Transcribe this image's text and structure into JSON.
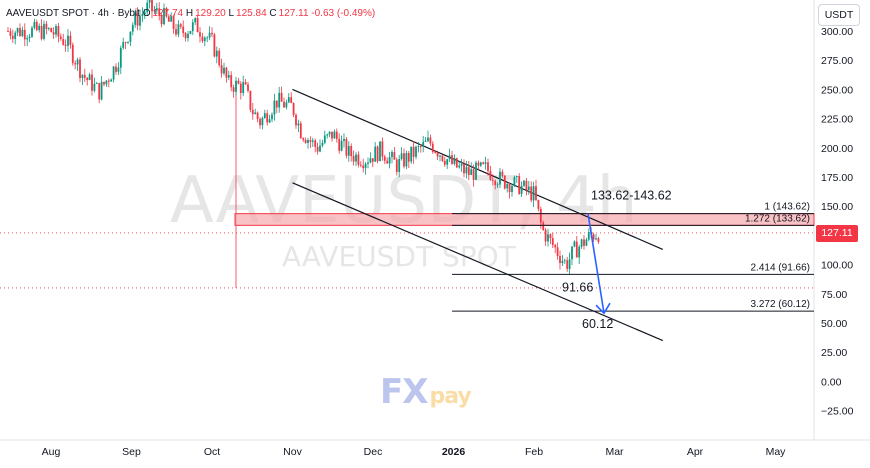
{
  "chart_data": {
    "type": "candlestick",
    "title": "AAVEUSDT SPOT · 4h · Bybit",
    "watermark": {
      "main": "AAVEUSDT, 4h",
      "sub": "AAVEUSDT SPOT"
    },
    "currency": "USDT",
    "ohlc": {
      "o_label": "O",
      "o": "127.74",
      "h_label": "H",
      "h": "129.20",
      "l_label": "L",
      "l": "125.84",
      "c_label": "C",
      "c": "127.11",
      "change": "-0.63 (-0.49%)"
    },
    "last_price": "127.11",
    "y_ticks": [
      300,
      275,
      250,
      225,
      200,
      175,
      150,
      125,
      100,
      75,
      50,
      25,
      0,
      -25
    ],
    "y_tick_labels": [
      "300.00",
      "275.00",
      "250.00",
      "225.00",
      "200.00",
      "175.00",
      "150.00",
      "125.00",
      "100.00",
      "75.00",
      "50.00",
      "25.00",
      "0.00",
      "−25.00"
    ],
    "x_ticks": [
      {
        "label": "Aug",
        "bold": false
      },
      {
        "label": "Sep",
        "bold": false
      },
      {
        "label": "Oct",
        "bold": false
      },
      {
        "label": "Nov",
        "bold": false
      },
      {
        "label": "Dec",
        "bold": false
      },
      {
        "label": "2026",
        "bold": true
      },
      {
        "label": "Feb",
        "bold": false
      },
      {
        "label": "Mar",
        "bold": false
      },
      {
        "label": "Apr",
        "bold": false
      },
      {
        "label": "May",
        "bold": false
      }
    ],
    "ylim": [
      -30,
      325
    ],
    "price_path": [
      [
        0,
        300
      ],
      [
        0.2,
        290
      ],
      [
        0.4,
        262
      ],
      [
        0.6,
        248
      ],
      [
        0.8,
        270
      ],
      [
        1.0,
        305
      ],
      [
        1.2,
        320
      ],
      [
        1.4,
        312
      ],
      [
        1.6,
        298
      ],
      [
        1.8,
        305
      ],
      [
        2.0,
        290
      ],
      [
        2.2,
        255
      ],
      [
        2.4,
        252
      ],
      [
        2.5,
        232
      ],
      [
        2.6,
        222
      ],
      [
        2.8,
        240
      ],
      [
        3.0,
        235
      ],
      [
        3.1,
        215
      ],
      [
        3.3,
        200
      ],
      [
        3.5,
        212
      ],
      [
        3.7,
        195
      ],
      [
        3.9,
        190
      ],
      [
        4.1,
        198
      ],
      [
        4.3,
        185
      ],
      [
        4.5,
        195
      ],
      [
        4.7,
        205
      ],
      [
        4.8,
        198
      ],
      [
        5.0,
        185
      ],
      [
        5.2,
        178
      ],
      [
        5.4,
        182
      ],
      [
        5.6,
        172
      ],
      [
        5.8,
        168
      ],
      [
        6.0,
        160
      ],
      [
        6.1,
        130
      ],
      [
        6.25,
        115
      ],
      [
        6.4,
        100
      ],
      [
        6.5,
        112
      ],
      [
        6.6,
        118
      ],
      [
        6.7,
        125
      ],
      [
        6.8,
        127
      ]
    ],
    "support_zone": {
      "low": 133.62,
      "high": 143.62,
      "label": "133.62-143.62"
    },
    "fib_levels": [
      {
        "label": "1 (143.62)",
        "value": 143.62
      },
      {
        "label": "1.272 (133.62)",
        "value": 133.62
      },
      {
        "label": "2.414 (91.66)",
        "value": 91.66
      },
      {
        "label": "3.272 (60.12)",
        "value": 60.12
      }
    ],
    "annotations": [
      {
        "text": "91.66",
        "value": 91.66
      },
      {
        "text": "60.12",
        "value": 60.12
      }
    ],
    "channel": {
      "upper": [
        [
          3.0,
          250
        ],
        [
          7.6,
          113
        ]
      ],
      "lower": [
        [
          3.0,
          170
        ],
        [
          7.6,
          35
        ]
      ]
    },
    "projection_arrow": {
      "from": 143.62,
      "to": 60.12
    }
  },
  "branding": {
    "logo_fx": "FX",
    "logo_pay": "pay"
  }
}
